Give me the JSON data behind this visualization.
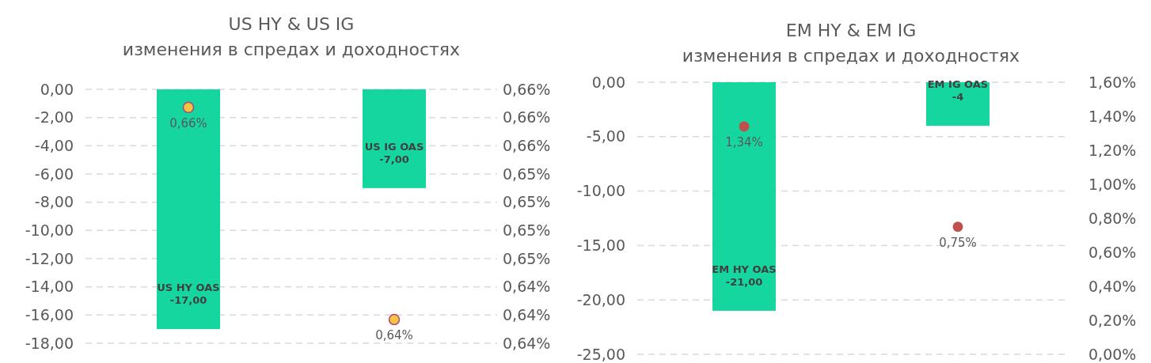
{
  "chart_data": [
    {
      "type": "bar",
      "title": "US HY & US IG",
      "subtitle": "изменения в спредах и доходностях",
      "categories": [
        "US HY OAS",
        "US IG OAS"
      ],
      "series": [
        {
          "color": "#16d6a0",
          "values": [
            -17,
            -7
          ],
          "value_labels": [
            "-17,00",
            "-7,00"
          ]
        },
        {
          "type": "scatter",
          "axis": "y2",
          "color": "#f5c242",
          "values": [
            0.6584,
            0.6396
          ],
          "value_labels": [
            "0,66%",
            "0,64%"
          ]
        }
      ],
      "ylim": [
        -18,
        0
      ],
      "yticks": [
        {
          "value": 0,
          "label": "0,00"
        },
        {
          "value": -2,
          "label": "-2,00"
        },
        {
          "value": -4,
          "label": "-4,00"
        },
        {
          "value": -6,
          "label": "-6,00"
        },
        {
          "value": -8,
          "label": "-8,00"
        },
        {
          "value": -10,
          "label": "-10,00"
        },
        {
          "value": -12,
          "label": "-12,00"
        },
        {
          "value": -14,
          "label": "-14,00"
        },
        {
          "value": -16,
          "label": "-16,00"
        },
        {
          "value": -18,
          "label": "-18,00"
        }
      ],
      "y2lim": [
        0.6375,
        0.66
      ],
      "y2ticks": [
        {
          "value": 0.66,
          "label": "0,66%"
        },
        {
          "value": 0.6575,
          "label": "0,66%"
        },
        {
          "value": 0.655,
          "label": "0,66%"
        },
        {
          "value": 0.6525,
          "label": "0,65%"
        },
        {
          "value": 0.65,
          "label": "0,65%"
        },
        {
          "value": 0.6475,
          "label": "0,65%"
        },
        {
          "value": 0.645,
          "label": "0,65%"
        },
        {
          "value": 0.6425,
          "label": "0,64%"
        },
        {
          "value": 0.64,
          "label": "0,64%"
        },
        {
          "value": 0.6375,
          "label": "0,64%"
        }
      ],
      "grid": "y",
      "marker": "circle"
    },
    {
      "type": "bar",
      "title": "EM HY & EM IG",
      "subtitle": "изменения в спредах и доходностях",
      "categories": [
        "EM HY OAS",
        "EM IG OAS"
      ],
      "series": [
        {
          "color": "#16d6a0",
          "values": [
            -21,
            -4
          ],
          "value_labels": [
            "-21,00",
            "-4"
          ]
        },
        {
          "type": "scatter",
          "axis": "y2",
          "color": "#c0504d",
          "values": [
            1.34,
            0.75
          ],
          "value_labels": [
            "1,34%",
            "0,75%"
          ]
        }
      ],
      "ylim": [
        -25,
        0
      ],
      "yticks": [
        {
          "value": 0,
          "label": "0,00"
        },
        {
          "value": -5,
          "label": "-5,00"
        },
        {
          "value": -10,
          "label": "-10,00"
        },
        {
          "value": -15,
          "label": "-15,00"
        },
        {
          "value": -20,
          "label": "-20,00"
        },
        {
          "value": -25,
          "label": "-25,00"
        }
      ],
      "y2lim": [
        0,
        1.6
      ],
      "y2ticks": [
        {
          "value": 0,
          "label": "0,00%"
        },
        {
          "value": 0.2,
          "label": "0,20%"
        },
        {
          "value": 0.4,
          "label": "0,40%"
        },
        {
          "value": 0.6,
          "label": "0,60%"
        },
        {
          "value": 0.8,
          "label": "0,80%"
        },
        {
          "value": 1.0,
          "label": "1,00%"
        },
        {
          "value": 1.2,
          "label": "1,20%"
        },
        {
          "value": 1.4,
          "label": "1,40%"
        },
        {
          "value": 1.6,
          "label": "1,60%"
        }
      ],
      "grid": "y",
      "marker": "circle"
    }
  ]
}
